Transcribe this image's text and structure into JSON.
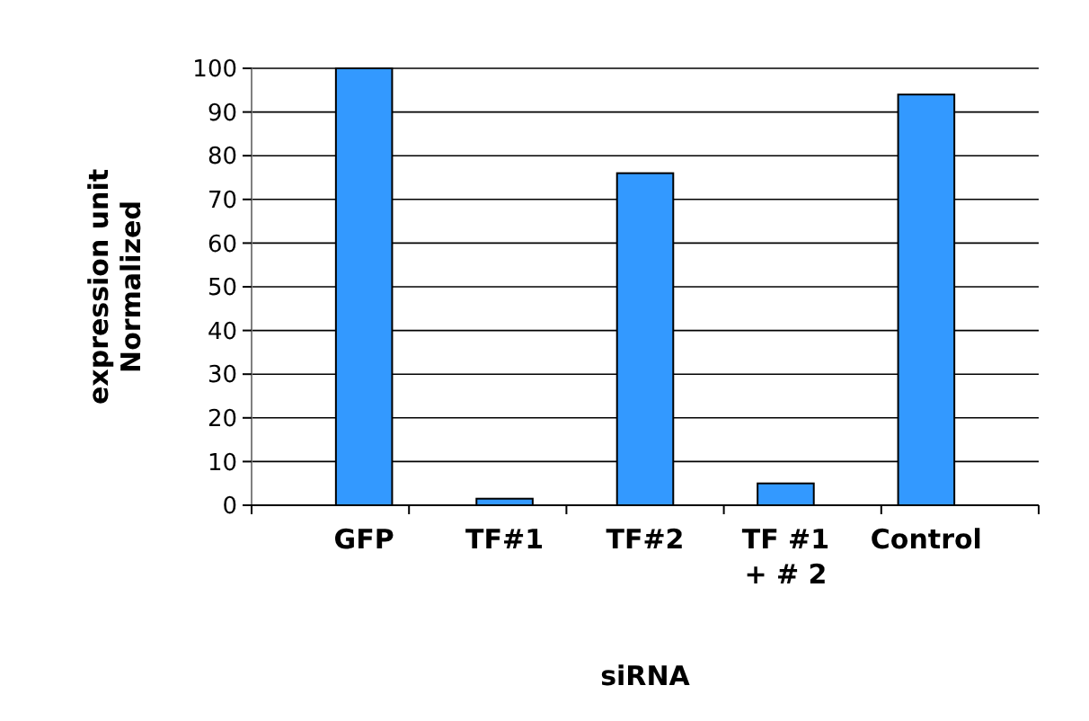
{
  "chart_data": {
    "type": "bar",
    "xlabel": "siRNA",
    "ylabel": "expression unit\nNormalized",
    "categories": [
      "GFP",
      "TF#1",
      "TF#2",
      "TF #1\n+ # 2",
      "Control"
    ],
    "values": [
      100,
      1.5,
      76,
      5,
      94
    ],
    "color": "#3399ff",
    "ylim": [
      0,
      100
    ],
    "yticks": [
      0,
      10,
      20,
      30,
      40,
      50,
      60,
      70,
      80,
      90,
      100
    ],
    "grid": "y"
  }
}
